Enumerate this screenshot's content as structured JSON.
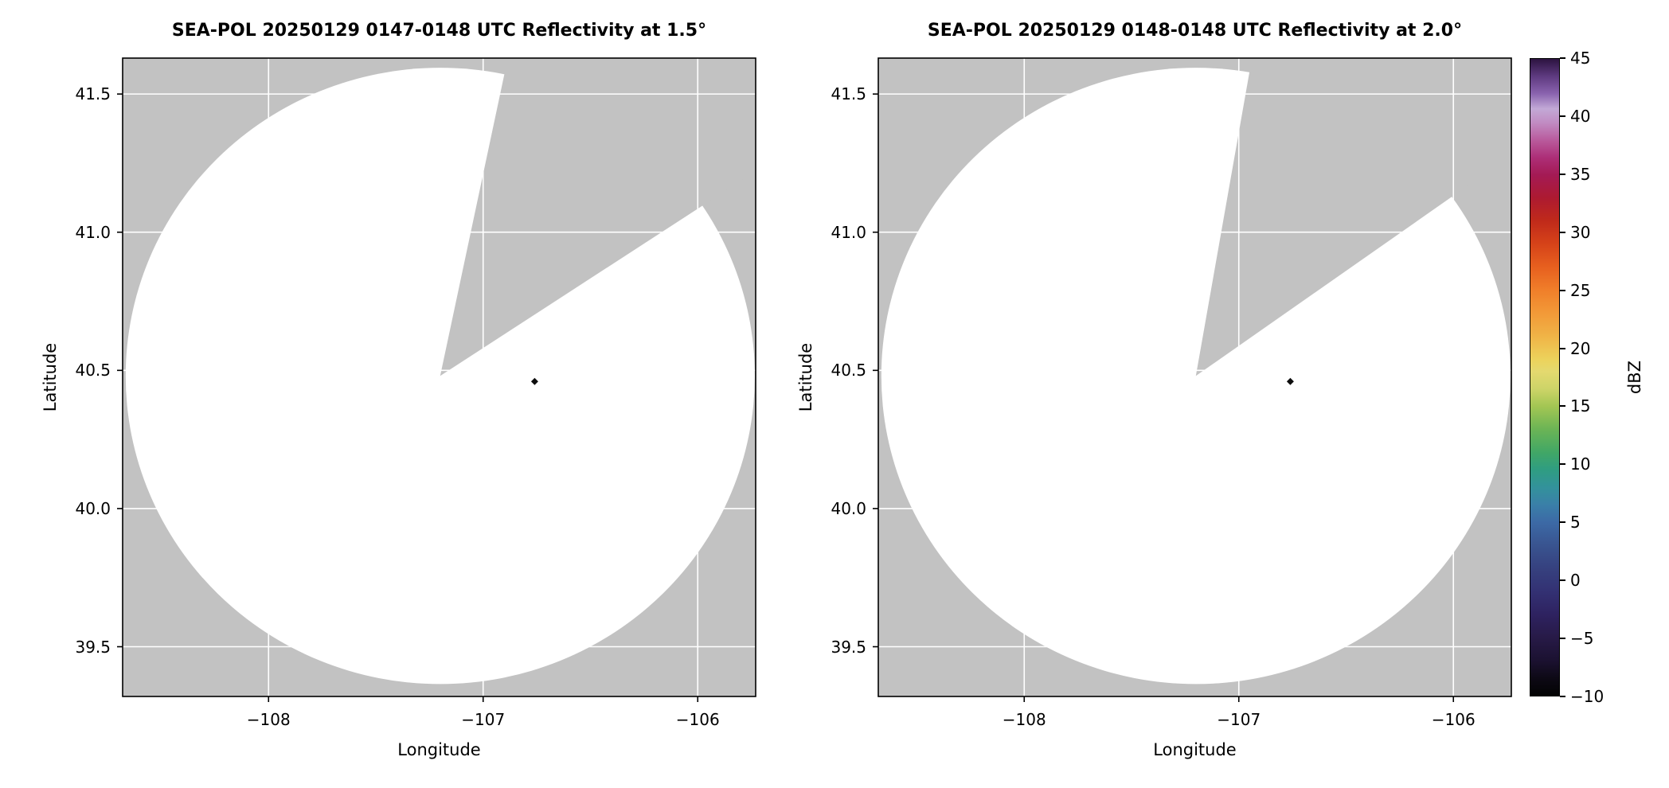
{
  "chart_data": [
    {
      "type": "radar_ppi",
      "title": "SEA-POL 20250129 0147-0148 UTC Reflectivity at 1.5°",
      "xlabel": "Longitude",
      "ylabel": "Latitude",
      "xlim": [
        -108.68,
        -105.73
      ],
      "ylim": [
        39.32,
        41.63
      ],
      "xticks": [
        -108,
        -107,
        -106
      ],
      "xtick_labels": [
        "−108",
        "−107",
        "−106"
      ],
      "yticks": [
        39.5,
        40.0,
        40.5,
        41.0,
        41.5
      ],
      "ytick_labels": [
        "39.5",
        "40.0",
        "40.5",
        "41.0",
        "41.5"
      ],
      "grid": true,
      "radar": {
        "center_lon": -107.2,
        "center_lat": 40.48,
        "radius_deg_lat": 1.115
      },
      "missing_sector_azimuth_deg": [
        12,
        57
      ],
      "echo_points": [
        {
          "lon": -106.76,
          "lat": 40.46,
          "dbz": -9
        }
      ],
      "colors": {
        "background": "#c2c2c2",
        "scan_fill": "#ffffff",
        "grid": "#ffffff",
        "frame": "#000000",
        "echo": "#0d0d0d"
      }
    },
    {
      "type": "radar_ppi",
      "title": "SEA-POL 20250129 0148-0148 UTC Reflectivity at 2.0°",
      "xlabel": "Longitude",
      "ylabel": "Latitude",
      "xlim": [
        -108.68,
        -105.73
      ],
      "ylim": [
        39.32,
        41.63
      ],
      "xticks": [
        -108,
        -107,
        -106
      ],
      "xtick_labels": [
        "−108",
        "−107",
        "−106"
      ],
      "yticks": [
        39.5,
        40.0,
        40.5,
        41.0,
        41.5
      ],
      "ytick_labels": [
        "39.5",
        "40.0",
        "40.5",
        "41.0",
        "41.5"
      ],
      "grid": true,
      "radar": {
        "center_lon": -107.2,
        "center_lat": 40.48,
        "radius_deg_lat": 1.115
      },
      "missing_sector_azimuth_deg": [
        10,
        55
      ],
      "echo_points": [
        {
          "lon": -106.76,
          "lat": 40.46,
          "dbz": -9
        }
      ],
      "colors": {
        "background": "#c2c2c2",
        "scan_fill": "#ffffff",
        "grid": "#ffffff",
        "frame": "#000000",
        "echo": "#0d0d0d"
      }
    }
  ],
  "colorbar": {
    "label": "dBZ",
    "vmin": -10,
    "vmax": 45,
    "ticks": [
      45,
      40,
      35,
      30,
      25,
      20,
      15,
      10,
      5,
      0,
      -5,
      -10
    ],
    "tick_labels": [
      "45",
      "40",
      "35",
      "30",
      "25",
      "20",
      "15",
      "10",
      "5",
      "0",
      "−5",
      "−10"
    ],
    "colormap_name": "spectral-reflectivity",
    "stops": [
      {
        "v": -10,
        "c": "#030303"
      },
      {
        "v": -8.5,
        "c": "#0d0915"
      },
      {
        "v": -7,
        "c": "#1b1130"
      },
      {
        "v": -5,
        "c": "#271a47"
      },
      {
        "v": -3,
        "c": "#2e2260"
      },
      {
        "v": -1,
        "c": "#333173"
      },
      {
        "v": 1,
        "c": "#36417f"
      },
      {
        "v": 3,
        "c": "#395490"
      },
      {
        "v": 5,
        "c": "#3c6aa6"
      },
      {
        "v": 6.5,
        "c": "#3a80a8"
      },
      {
        "v": 8,
        "c": "#33929b"
      },
      {
        "v": 9.5,
        "c": "#2f9d82"
      },
      {
        "v": 11,
        "c": "#41a766"
      },
      {
        "v": 13,
        "c": "#6bb455"
      },
      {
        "v": 15,
        "c": "#a3c653"
      },
      {
        "v": 16.5,
        "c": "#cdd468"
      },
      {
        "v": 18,
        "c": "#e4d96f"
      },
      {
        "v": 19,
        "c": "#ecd35c"
      },
      {
        "v": 21,
        "c": "#f0b447"
      },
      {
        "v": 23,
        "c": "#f29a38"
      },
      {
        "v": 25,
        "c": "#f07f2a"
      },
      {
        "v": 27,
        "c": "#e7601f"
      },
      {
        "v": 29,
        "c": "#d64319"
      },
      {
        "v": 31,
        "c": "#c02a1a"
      },
      {
        "v": 33,
        "c": "#ad1a31"
      },
      {
        "v": 35,
        "c": "#a41a55"
      },
      {
        "v": 36.5,
        "c": "#ad2f78"
      },
      {
        "v": 38,
        "c": "#b95b9d"
      },
      {
        "v": 39.5,
        "c": "#c18cc3"
      },
      {
        "v": 40.7,
        "c": "#c2a9d6"
      },
      {
        "v": 42,
        "c": "#8a63af"
      },
      {
        "v": 43.5,
        "c": "#5e3a80"
      },
      {
        "v": 45,
        "c": "#2c1340"
      }
    ]
  }
}
